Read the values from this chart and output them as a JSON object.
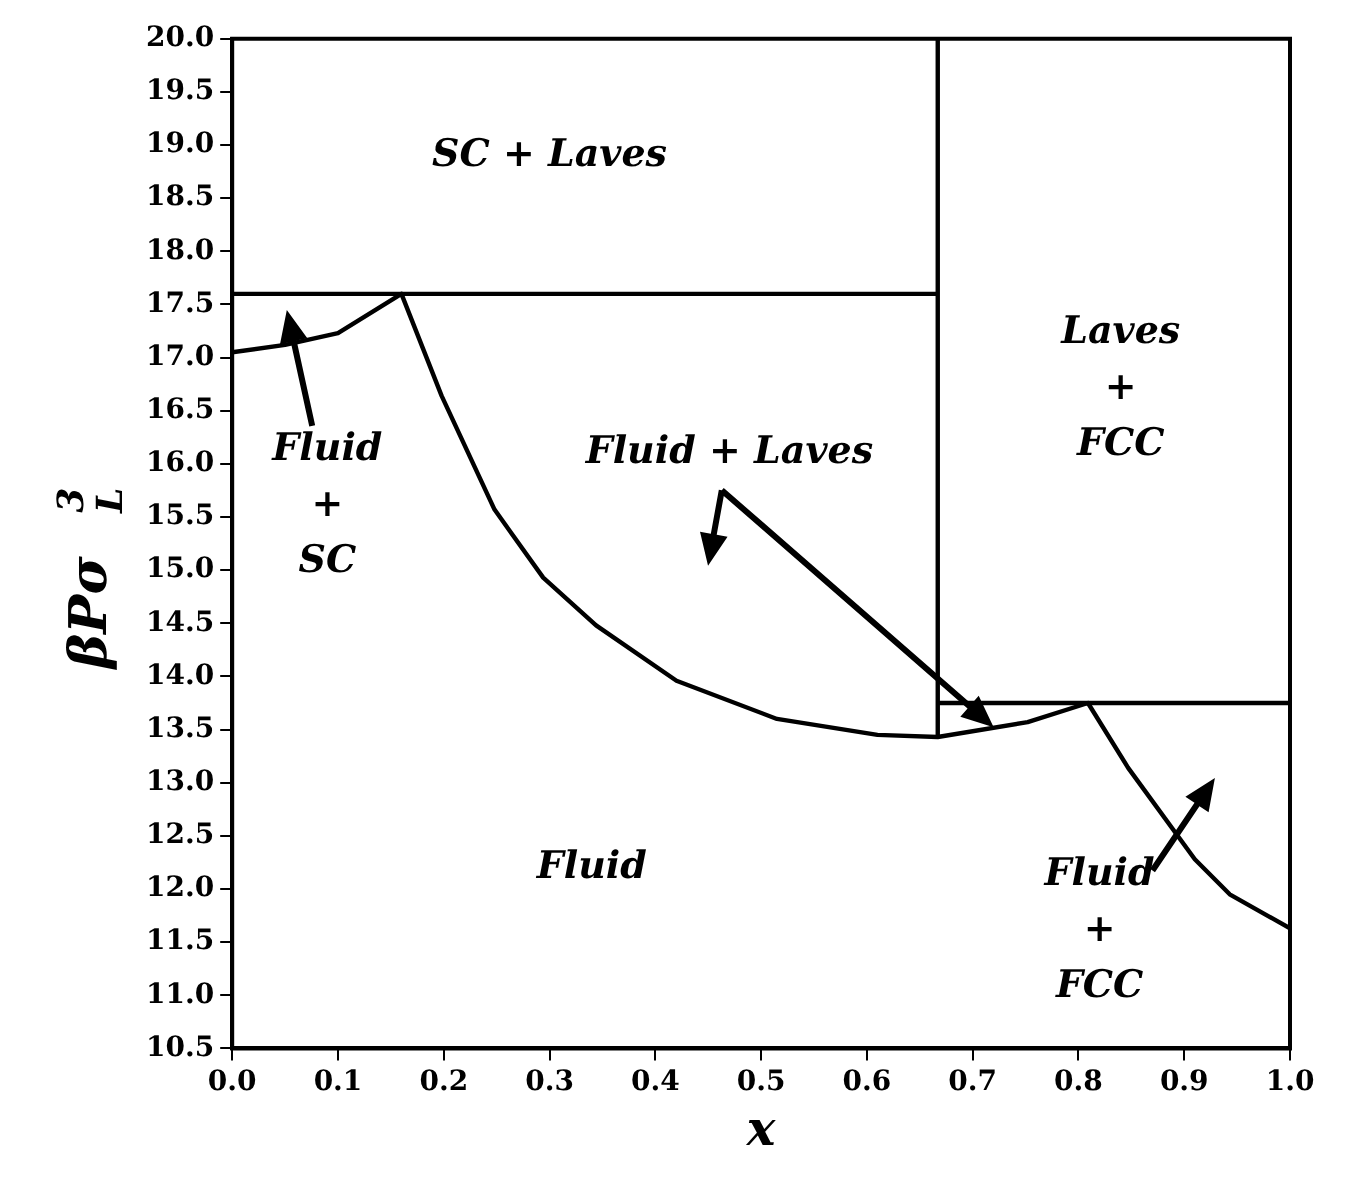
{
  "chart_data": {
    "type": "line",
    "xlabel": "x",
    "ylabel": "βPσ$_{L}$$^{3}$",
    "xlim": [
      0,
      1
    ],
    "xticks": [
      {
        "value": 0,
        "label": "0.0"
      },
      0.1,
      0.2,
      0.3,
      0.4,
      0.5,
      0.6,
      0.7,
      0.8,
      0.9,
      {
        "value": 1,
        "label": "1.0"
      }
    ],
    "ylim": [
      10.5,
      20
    ],
    "yticks": [
      10.5,
      {
        "value": 11,
        "label": "11.0"
      },
      11.5,
      {
        "value": 12,
        "label": "12.0"
      },
      12.5,
      {
        "value": 13,
        "label": "13.0"
      },
      13.5,
      {
        "value": 14,
        "label": "14.0"
      },
      14.5,
      {
        "value": 15,
        "label": "15.0"
      },
      15.5,
      {
        "value": 16,
        "label": "16.0"
      },
      16.5,
      {
        "value": 17,
        "label": "17.0"
      },
      17.5,
      {
        "value": 18,
        "label": "18.0"
      },
      18.5,
      {
        "value": 19,
        "label": "19.0"
      },
      19.5,
      {
        "value": 20,
        "label": "20.0"
      }
    ],
    "grid": false,
    "legend": false,
    "marker": "none",
    "line_style": "solid",
    "series": [
      {
        "color": "#000000",
        "x": [
          0,
          0.05,
          0.1,
          0.16,
          0.198,
          0.248,
          0.294,
          0.344,
          0.42,
          0.515,
          0.61,
          0.667,
          0.752,
          0.809,
          0.847,
          0.91,
          0.943,
          1
        ],
        "values": [
          17.05,
          17.12,
          17.23,
          17.6,
          16.64,
          15.57,
          14.93,
          14.48,
          13.96,
          13.6,
          13.45,
          13.43,
          13.57,
          13.75,
          13.14,
          12.28,
          11.95,
          11.63
        ]
      },
      {
        "color": "#000000",
        "x": [
          0,
          0.667
        ],
        "values": [
          17.6,
          17.6
        ]
      },
      {
        "color": "#000000",
        "x": [
          0.667,
          0.667
        ],
        "values": [
          13.43,
          20
        ]
      },
      {
        "color": "#000000",
        "x": [
          0.667,
          1
        ],
        "values": [
          13.75,
          13.75
        ]
      }
    ],
    "annotations": [
      "SC + Laves",
      "Laves\n+\nFCC",
      "Fluid + Laves",
      "Fluid\n+\nSC",
      "Fluid",
      "Fluid\n+\nFCC"
    ]
  }
}
